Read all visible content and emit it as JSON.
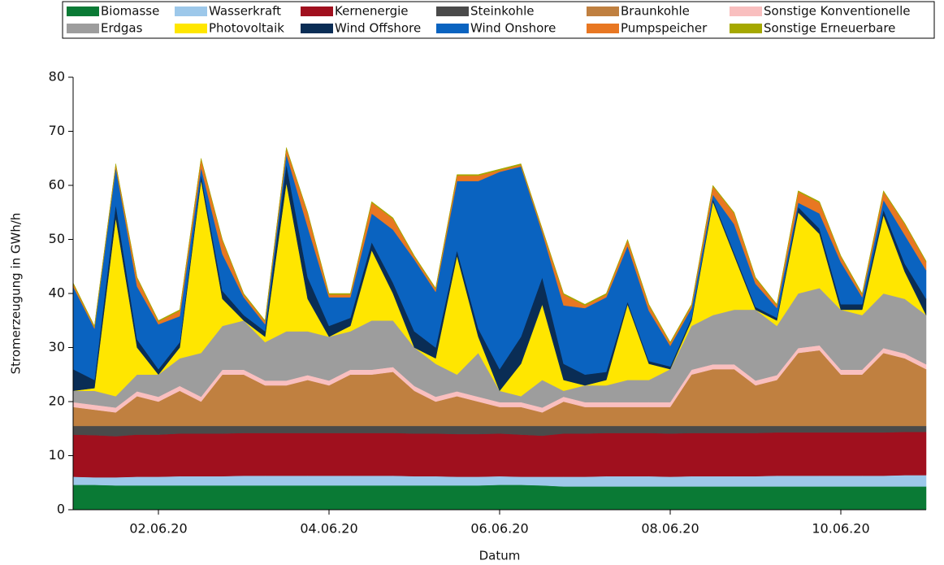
{
  "chart_data": {
    "type": "stacked_area",
    "y_label": "Stromerzeugung in GWh/h",
    "x_label": "Datum",
    "categories": [
      null,
      null,
      null,
      null,
      "02.06.20",
      null,
      null,
      null,
      null,
      null,
      null,
      null,
      "04.06.20",
      null,
      null,
      null,
      null,
      null,
      null,
      null,
      "06.06.20",
      null,
      null,
      null,
      null,
      null,
      null,
      null,
      "08.06.20",
      null,
      null,
      null,
      null,
      null,
      null,
      null,
      "10.06.20",
      null,
      null,
      null,
      null
    ],
    "ylim": [
      0,
      80
    ],
    "yticks": [
      0,
      10,
      20,
      30,
      40,
      50,
      60,
      70,
      80
    ],
    "legend": "top",
    "series": [
      {
        "name": "Biomasse",
        "color": "#0a7a35",
        "values": [
          4.6,
          4.6,
          4.5,
          4.5,
          4.5,
          4.5,
          4.5,
          4.5,
          4.5,
          4.5,
          4.5,
          4.5,
          4.5,
          4.5,
          4.5,
          4.5,
          4.5,
          4.5,
          4.5,
          4.5,
          4.6,
          4.6,
          4.5,
          4.3,
          4.3,
          4.3,
          4.3,
          4.3,
          4.3,
          4.3,
          4.3,
          4.3,
          4.3,
          4.3,
          4.3,
          4.3,
          4.3,
          4.3,
          4.3,
          4.3,
          4.3
        ]
      },
      {
        "name": "Wasserkraft",
        "color": "#9dc8ea",
        "values": [
          1.5,
          1.4,
          1.5,
          1.6,
          1.6,
          1.7,
          1.7,
          1.7,
          1.8,
          1.8,
          1.8,
          1.8,
          1.8,
          1.8,
          1.8,
          1.8,
          1.7,
          1.7,
          1.6,
          1.6,
          1.6,
          1.5,
          1.6,
          1.8,
          1.8,
          1.9,
          1.9,
          1.9,
          1.8,
          1.9,
          1.9,
          1.9,
          1.9,
          2.0,
          2.0,
          2.0,
          2.0,
          2.0,
          2.0,
          2.1,
          2.1
        ]
      },
      {
        "name": "Kernenergie",
        "color": "#a0101e",
        "values": [
          7.8,
          7.8,
          7.6,
          7.8,
          7.8,
          7.9,
          7.9,
          7.9,
          7.9,
          7.9,
          7.9,
          7.9,
          7.9,
          7.9,
          7.9,
          7.9,
          7.9,
          7.9,
          7.9,
          7.9,
          7.9,
          7.8,
          7.6,
          8.0,
          8.0,
          8.0,
          8.0,
          8.0,
          8.0,
          8.0,
          8.0,
          8.0,
          8.0,
          8.0,
          8.0,
          8.0,
          8.0,
          8.0,
          8.0,
          8.0,
          8.0
        ]
      },
      {
        "name": "Steinkohle",
        "color": "#4a4a4a",
        "values": [
          1.6,
          1.7,
          1.9,
          1.6,
          1.6,
          1.4,
          1.4,
          1.4,
          1.3,
          1.3,
          1.3,
          1.3,
          1.3,
          1.3,
          1.3,
          1.3,
          1.4,
          1.4,
          1.5,
          1.5,
          1.4,
          1.6,
          1.8,
          1.4,
          1.4,
          1.3,
          1.3,
          1.3,
          1.4,
          1.3,
          1.3,
          1.3,
          1.3,
          1.2,
          1.2,
          1.2,
          1.2,
          1.2,
          1.2,
          1.1,
          1.1
        ]
      },
      {
        "name": "Braunkohle",
        "color": "#c08040",
        "values": [
          3.5,
          3,
          2.5,
          5.5,
          4.5,
          6.5,
          4.5,
          9.5,
          9.5,
          7.5,
          7.5,
          8.5,
          7.5,
          9.5,
          9.5,
          10,
          6.5,
          4.5,
          5.5,
          4.5,
          3.5,
          3.5,
          2.5,
          4.5,
          3.5,
          3.5,
          3.5,
          3.5,
          3.5,
          9.5,
          10.5,
          10.5,
          7.5,
          8.5,
          13.5,
          14,
          9.5,
          9.5,
          13.5,
          12.5,
          10.5
        ]
      },
      {
        "name": "Sonstige Konventionelle",
        "color": "#f9bfbf",
        "values": [
          0.9,
          0.9,
          0.9,
          0.9,
          0.9,
          0.9,
          0.9,
          0.9,
          0.9,
          0.9,
          0.9,
          0.9,
          0.9,
          0.9,
          0.9,
          0.9,
          0.9,
          0.9,
          0.9,
          0.9,
          0.9,
          0.9,
          0.9,
          0.9,
          0.9,
          0.9,
          0.9,
          0.9,
          0.9,
          0.9,
          0.9,
          0.9,
          0.9,
          0.9,
          0.9,
          0.9,
          0.9,
          0.9,
          0.9,
          0.9,
          0.9
        ]
      },
      {
        "name": "Erdgas",
        "color": "#9d9d9d",
        "values": [
          2.1,
          2.6,
          2.1,
          3.1,
          4.1,
          5.1,
          8.1,
          8.1,
          9.1,
          7.1,
          9.1,
          8.1,
          8.1,
          7.1,
          9.1,
          8.6,
          7.1,
          6.1,
          3.1,
          8.1,
          2.1,
          1.1,
          5.1,
          1.1,
          3.1,
          3.1,
          4.1,
          4.1,
          6.1,
          8.1,
          9.1,
          10.1,
          13.1,
          9.1,
          10.1,
          10.6,
          11.1,
          10.1,
          10.1,
          10.1,
          9.1
        ]
      },
      {
        "name": "Photovoltaik",
        "color": "#ffe600",
        "values": [
          0,
          0.5,
          33,
          5,
          0,
          2,
          32,
          5,
          0,
          1,
          27.5,
          6,
          0,
          1,
          13,
          5,
          0,
          1,
          22,
          3,
          0,
          6,
          14,
          2,
          0,
          1,
          14,
          3,
          0,
          1,
          21,
          10,
          0,
          1,
          15,
          10,
          0,
          1,
          14.5,
          5,
          0
        ]
      },
      {
        "name": "Wind Offshore",
        "color": "#0a2d55",
        "values": [
          4,
          1.5,
          2.5,
          1.5,
          1,
          1,
          1,
          1.5,
          1,
          1,
          3.5,
          4,
          2,
          1.5,
          1.5,
          2,
          3,
          2,
          1,
          1.5,
          4,
          5,
          5,
          3,
          2,
          1.5,
          0.5,
          0.5,
          0.5,
          0.5,
          0.5,
          0.5,
          0.5,
          0.5,
          1,
          1,
          1,
          1,
          1,
          1.5,
          3
        ]
      },
      {
        "name": "Wind Onshore",
        "color": "#0a63c0",
        "values": [
          15.3,
          9.5,
          6.8,
          9.8,
          8.3,
          4.8,
          1.3,
          6.8,
          3.3,
          1.3,
          1.8,
          9.3,
          5.3,
          3.8,
          5.3,
          9.8,
          13.3,
          10.3,
          12.8,
          27.3,
          36.5,
          31.5,
          8.3,
          10.8,
          12.3,
          13.8,
          10.3,
          9.3,
          3.8,
          1.8,
          0.8,
          5.3,
          4.3,
          1.8,
          0.8,
          2.8,
          7.8,
          1.3,
          1.8,
          5.3,
          5.3
        ]
      },
      {
        "name": "Pumpspeicher",
        "color": "#e87722",
        "values": [
          0.5,
          0.3,
          0.5,
          1.5,
          0.5,
          1,
          1.5,
          2.5,
          0.5,
          0.5,
          1,
          2.5,
          0.5,
          0.5,
          2,
          2,
          0.5,
          0.5,
          1,
          1,
          0.3,
          0.3,
          0.5,
          2,
          0.5,
          0.5,
          1,
          1,
          0.5,
          0.5,
          1.5,
          2,
          1,
          0.5,
          2,
          2,
          1,
          0.5,
          1.5,
          2,
          1.5
        ]
      },
      {
        "name": "Sonstige Erneuerbare",
        "color": "#a5a800",
        "values": [
          0.2,
          0.2,
          0.2,
          0.2,
          0.2,
          0.2,
          0.2,
          0.2,
          0.2,
          0.2,
          0.2,
          0.2,
          0.2,
          0.2,
          0.2,
          0.2,
          0.2,
          0.2,
          0.2,
          0.2,
          0.2,
          0.2,
          0.2,
          0.2,
          0.2,
          0.2,
          0.2,
          0.2,
          0.2,
          0.2,
          0.2,
          0.2,
          0.2,
          0.2,
          0.2,
          0.2,
          0.2,
          0.2,
          0.2,
          0.2,
          0.2
        ]
      }
    ]
  }
}
